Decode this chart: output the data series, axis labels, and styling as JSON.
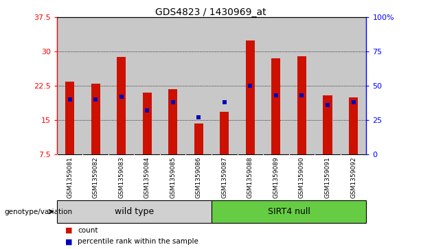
{
  "title": "GDS4823 / 1430969_at",
  "samples": [
    "GSM1359081",
    "GSM1359082",
    "GSM1359083",
    "GSM1359084",
    "GSM1359085",
    "GSM1359086",
    "GSM1359087",
    "GSM1359088",
    "GSM1359089",
    "GSM1359090",
    "GSM1359091",
    "GSM1359092"
  ],
  "counts": [
    23.5,
    23.0,
    28.8,
    21.0,
    21.8,
    14.2,
    16.8,
    32.5,
    28.5,
    29.0,
    20.5,
    20.0
  ],
  "percentile_ranks": [
    40,
    40,
    42,
    32,
    38,
    27,
    38,
    50,
    43,
    43,
    36,
    38
  ],
  "y_min": 7.5,
  "y_max": 37.5,
  "y_ticks_left": [
    7.5,
    15.0,
    22.5,
    30.0,
    37.5
  ],
  "y_ticks_left_labels": [
    "7.5",
    "15",
    "22.5",
    "30",
    "37.5"
  ],
  "y_ticks_right": [
    0,
    25,
    50,
    75,
    100
  ],
  "y_ticks_right_labels": [
    "0",
    "25",
    "50",
    "75",
    "100%"
  ],
  "bar_color": "#cc1100",
  "marker_color": "#0000bb",
  "bg_color_axes": "#c8c8c8",
  "wild_type_label": "wild type",
  "sirt4_null_label": "SIRT4 null",
  "wild_type_color": "#d0d0d0",
  "sirt4_null_color": "#66cc44",
  "legend_count_label": "count",
  "legend_pct_label": "percentile rank within the sample",
  "genotype_label": "genotype/variation",
  "bar_width": 0.35,
  "marker_size": 5
}
